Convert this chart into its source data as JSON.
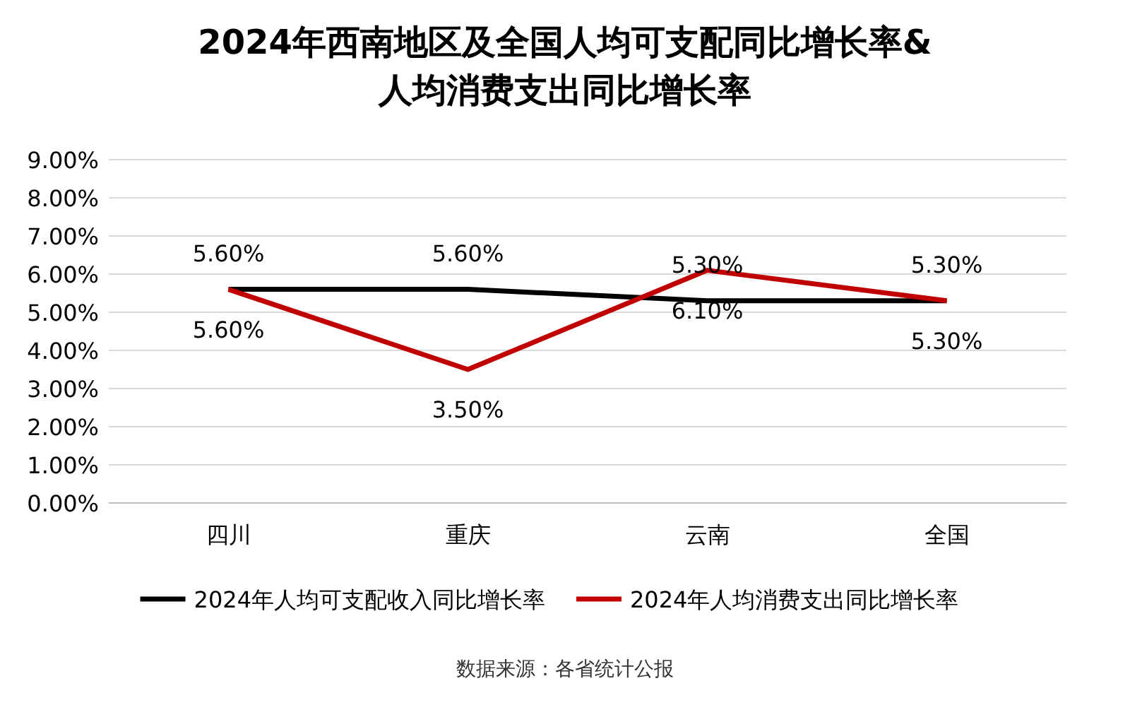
{
  "chart_data": {
    "type": "line",
    "title": "2024年西南地区及全国人均可支配同比增长率&人均消费支出同比增长率",
    "categories": [
      "四川",
      "重庆",
      "云南",
      "全国"
    ],
    "series": [
      {
        "name": "2024年人均可支配收入同比增长率",
        "color": "#000000",
        "values": [
          5.6,
          5.6,
          5.3,
          5.3
        ],
        "value_labels": [
          "5.60%",
          "5.60%",
          "5.30%",
          "5.30%"
        ]
      },
      {
        "name": "2024年人均消费支出同比增长率",
        "color": "#c00000",
        "values": [
          5.6,
          3.5,
          6.1,
          5.3
        ],
        "value_labels": [
          "5.60%",
          "3.50%",
          "6.10%",
          "5.30%"
        ]
      }
    ],
    "ylim": [
      0,
      9
    ],
    "yticks": [
      {
        "value": 0,
        "label": "0.00%"
      },
      {
        "value": 1,
        "label": "1.00%"
      },
      {
        "value": 2,
        "label": "2.00%"
      },
      {
        "value": 3,
        "label": "3.00%"
      },
      {
        "value": 4,
        "label": "4.00%"
      },
      {
        "value": 5,
        "label": "5.00%"
      },
      {
        "value": 6,
        "label": "6.00%"
      },
      {
        "value": 7,
        "label": "7.00%"
      },
      {
        "value": 8,
        "label": "8.00%"
      },
      {
        "value": 9,
        "label": "9.00%"
      }
    ],
    "grid": "y",
    "legend": "bottom",
    "marker": "none",
    "line_style": "solid",
    "annotations": [
      "数据来源：各省统计公报"
    ]
  }
}
